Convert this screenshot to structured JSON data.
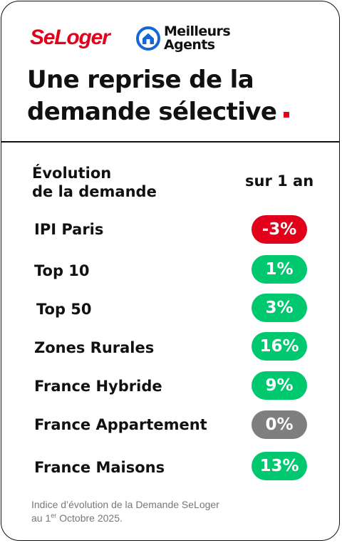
{
  "brand": {
    "seloger": "SeLoger",
    "meilleurs_line1": "Meilleurs",
    "meilleurs_line2": "Agents",
    "logo_icon": "house-in-circle-icon"
  },
  "title": {
    "line1": "Une reprise de la",
    "line2": "demande sélective"
  },
  "table": {
    "header_left_line1": "Évolution",
    "header_left_line2": "de la demande",
    "header_right": "sur 1 an",
    "rows": [
      {
        "label": "IPI Paris",
        "value": "-3%",
        "color": "#e3001b"
      },
      {
        "label": "Top 10",
        "value": "1%",
        "color": "#00c86f"
      },
      {
        "label": "Top 50",
        "value": "3%",
        "color": "#00c86f"
      },
      {
        "label": "Zones Rurales",
        "value": "16%",
        "color": "#00c86f"
      },
      {
        "label": "France Hybride",
        "value": "9%",
        "color": "#00c86f"
      },
      {
        "label": "France Appartement",
        "value": "0%",
        "color": "#7f7f7f"
      },
      {
        "label": "France Maisons",
        "value": "13%",
        "color": "#00c86f"
      }
    ]
  },
  "footnote": {
    "line1": "Indice d’évolution de la Demande SeLoger",
    "line2_prefix": "au 1",
    "line2_sup": "er",
    "line2_suffix": " Octobre 2025."
  },
  "colors": {
    "brand_red": "#e3001b",
    "brand_blue": "#1666d8",
    "positive": "#00c86f",
    "negative": "#e3001b",
    "neutral": "#7f7f7f"
  }
}
